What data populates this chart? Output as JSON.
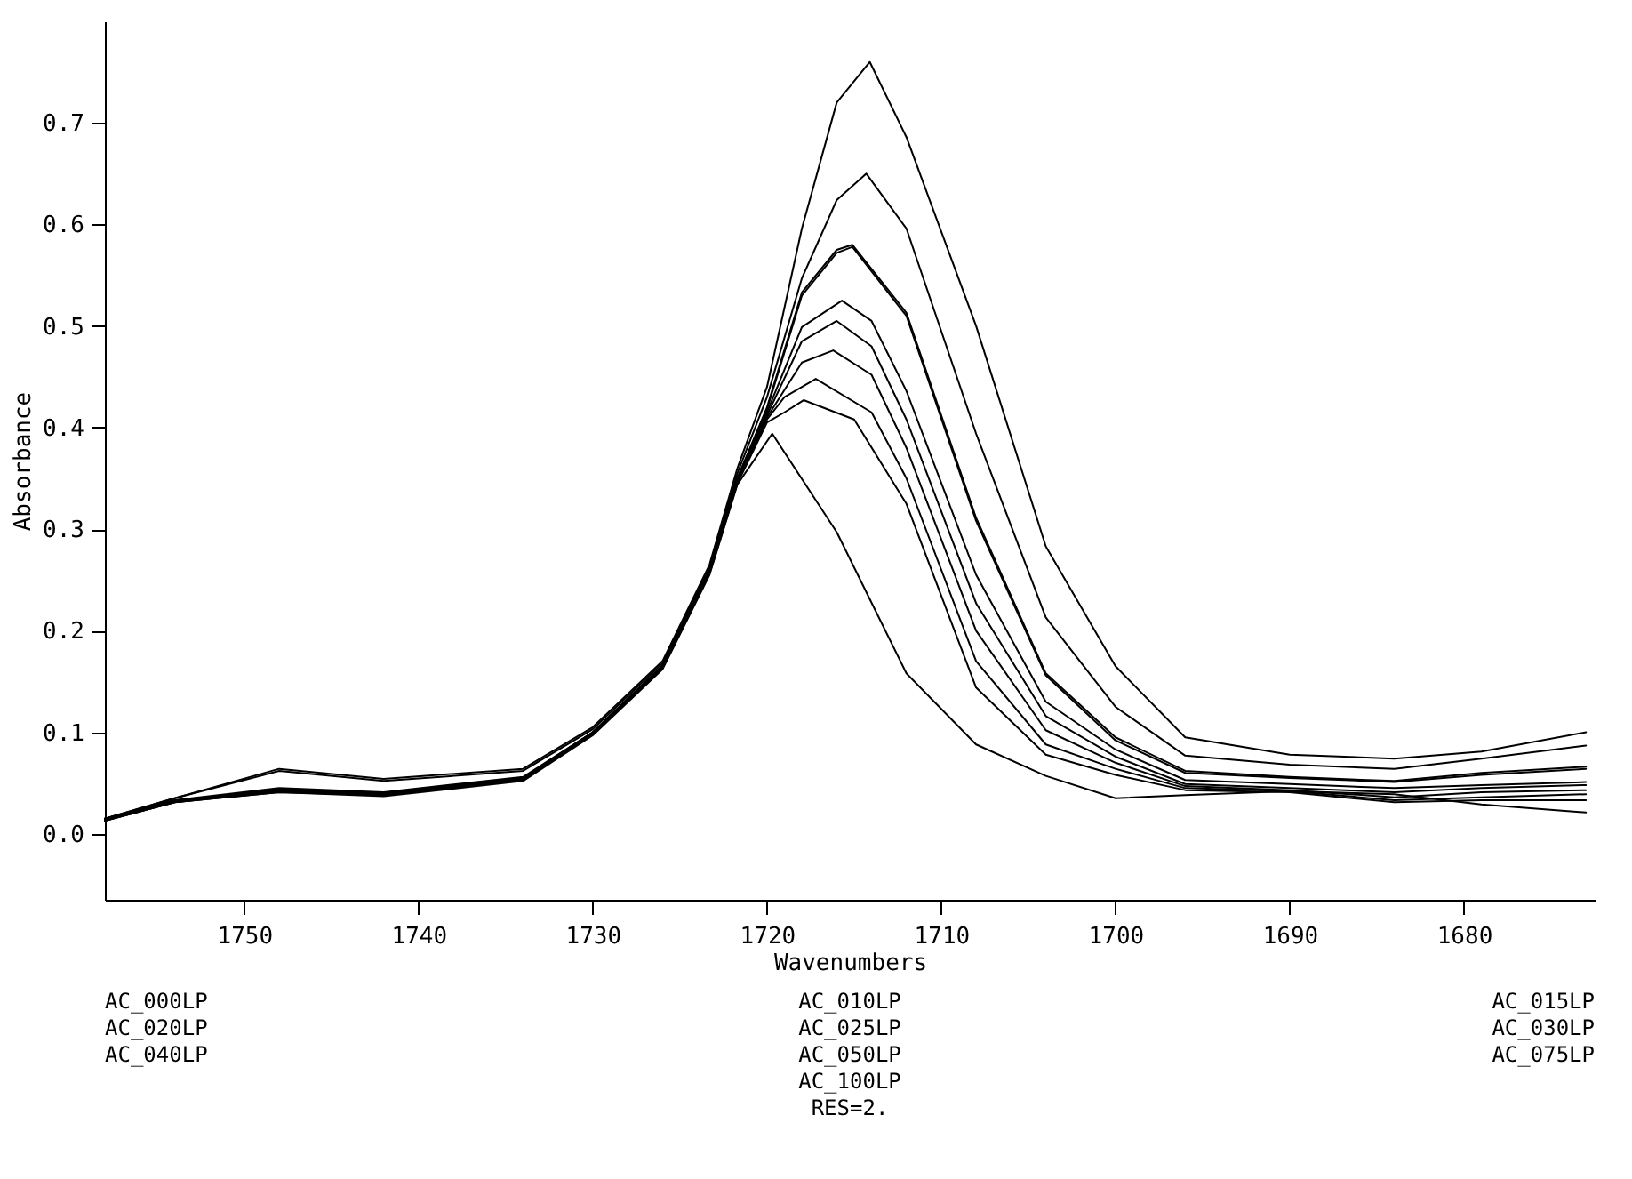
{
  "chart_data": {
    "type": "line",
    "xlabel": "Wavenumbers",
    "ylabel": "Absorbance",
    "xlim": [
      1758,
      1672.5
    ],
    "xticks": [
      1750,
      1740,
      1730,
      1720,
      1710,
      1700,
      1690,
      1680
    ],
    "ylim": [
      -0.065,
      0.8
    ],
    "yticks": [
      {
        "value": 0,
        "label": "0.0"
      },
      0.1,
      0.2,
      0.3,
      0.4,
      0.5,
      0.6,
      0.7
    ],
    "grid": false,
    "legend": false,
    "marker": "none",
    "line_style": "solid",
    "annotations": [
      "AC_000LP\nAC_020LP\nAC_040LP",
      "AC_010LP\nAC_025LP\nAC_050LP\nAC_100LP\nRES=2.",
      "AC_015LP\nAC_030LP\nAC_075LP"
    ],
    "series": [
      {
        "color": "#000000",
        "x": [
          1758,
          1754,
          1748,
          1742,
          1734,
          1730,
          1726,
          1723.3,
          1721.7,
          1720,
          1718,
          1716,
          1714.1,
          1712,
          1708,
          1704,
          1700,
          1696,
          1690,
          1684,
          1679,
          1673
        ],
        "values": [
          0.015,
          0.035,
          0.064,
          0.054,
          0.064,
          0.105,
          0.17,
          0.265,
          0.36,
          0.44,
          0.596,
          0.72,
          0.76,
          0.686,
          0.5,
          0.283,
          0.165,
          0.095,
          0.078,
          0.074,
          0.081,
          0.1
        ]
      },
      {
        "color": "#000000",
        "x": [
          1758,
          1754,
          1748,
          1742,
          1734,
          1730,
          1726,
          1723.3,
          1721.7,
          1720,
          1718,
          1716,
          1714.3,
          1712,
          1708,
          1704,
          1700,
          1696,
          1690,
          1684,
          1679,
          1673
        ],
        "values": [
          0.015,
          0.035,
          0.062,
          0.052,
          0.062,
          0.103,
          0.168,
          0.262,
          0.355,
          0.43,
          0.547,
          0.624,
          0.65,
          0.596,
          0.394,
          0.213,
          0.125,
          0.077,
          0.068,
          0.064,
          0.074,
          0.087
        ]
      },
      {
        "color": "#000000",
        "x": [
          1758,
          1754,
          1748,
          1742,
          1734,
          1730,
          1726,
          1723.3,
          1721.7,
          1720,
          1718,
          1716,
          1715.1,
          1712,
          1708,
          1704,
          1700,
          1696,
          1690,
          1684,
          1679,
          1673
        ],
        "values": [
          0.015,
          0.033,
          0.045,
          0.041,
          0.056,
          0.1,
          0.166,
          0.26,
          0.35,
          0.42,
          0.533,
          0.575,
          0.58,
          0.513,
          0.311,
          0.158,
          0.095,
          0.062,
          0.056,
          0.052,
          0.06,
          0.066
        ]
      },
      {
        "color": "#000000",
        "x": [
          1758,
          1754,
          1748,
          1742,
          1734,
          1730,
          1726,
          1723.3,
          1721.7,
          1720,
          1718,
          1716,
          1715.1,
          1712,
          1708,
          1704,
          1700,
          1696,
          1690,
          1684,
          1679,
          1673
        ],
        "values": [
          0.014,
          0.032,
          0.044,
          0.04,
          0.055,
          0.1,
          0.165,
          0.26,
          0.35,
          0.418,
          0.53,
          0.572,
          0.578,
          0.51,
          0.308,
          0.156,
          0.092,
          0.06,
          0.055,
          0.051,
          0.058,
          0.064
        ]
      },
      {
        "color": "#000000",
        "x": [
          1758,
          1754,
          1748,
          1742,
          1734,
          1730,
          1726,
          1723.3,
          1721.7,
          1720,
          1718,
          1715.7,
          1714,
          1712,
          1708,
          1704,
          1700,
          1696,
          1690,
          1684,
          1679,
          1673
        ],
        "values": [
          0.015,
          0.033,
          0.043,
          0.04,
          0.055,
          0.1,
          0.165,
          0.26,
          0.35,
          0.415,
          0.499,
          0.525,
          0.505,
          0.436,
          0.255,
          0.13,
          0.083,
          0.053,
          0.049,
          0.045,
          0.048,
          0.051
        ]
      },
      {
        "color": "#000000",
        "x": [
          1758,
          1754,
          1748,
          1742,
          1734,
          1730,
          1726,
          1723.3,
          1721.7,
          1720,
          1718,
          1716,
          1714,
          1712,
          1708,
          1704,
          1700,
          1696,
          1690,
          1684,
          1679,
          1673
        ],
        "values": [
          0.014,
          0.032,
          0.043,
          0.039,
          0.054,
          0.099,
          0.164,
          0.258,
          0.348,
          0.412,
          0.485,
          0.505,
          0.48,
          0.408,
          0.227,
          0.116,
          0.076,
          0.049,
          0.045,
          0.041,
          0.045,
          0.048
        ]
      },
      {
        "color": "#000000",
        "x": [
          1758,
          1754,
          1748,
          1742,
          1734,
          1730,
          1726,
          1723.3,
          1721.7,
          1720,
          1718,
          1716.2,
          1714,
          1712,
          1708,
          1704,
          1700,
          1696,
          1690,
          1684,
          1679,
          1673
        ],
        "values": [
          0.014,
          0.032,
          0.042,
          0.039,
          0.054,
          0.099,
          0.164,
          0.258,
          0.347,
          0.41,
          0.464,
          0.476,
          0.452,
          0.38,
          0.2,
          0.102,
          0.07,
          0.047,
          0.043,
          0.036,
          0.041,
          0.043
        ]
      },
      {
        "color": "#000000",
        "x": [
          1758,
          1754,
          1748,
          1742,
          1734,
          1730,
          1726,
          1723.3,
          1721.7,
          1720,
          1719,
          1717.2,
          1714,
          1712,
          1708,
          1704,
          1700,
          1696,
          1690,
          1684,
          1679,
          1673
        ],
        "values": [
          0.013,
          0.031,
          0.042,
          0.038,
          0.053,
          0.098,
          0.163,
          0.257,
          0.346,
          0.408,
          0.43,
          0.448,
          0.415,
          0.35,
          0.17,
          0.088,
          0.064,
          0.045,
          0.042,
          0.033,
          0.036,
          0.039
        ]
      },
      {
        "color": "#000000",
        "x": [
          1758,
          1754,
          1748,
          1742,
          1734,
          1730,
          1726,
          1723.3,
          1721.7,
          1720,
          1719,
          1717.9,
          1715,
          1712,
          1708,
          1704,
          1700,
          1696,
          1690,
          1684,
          1679,
          1673
        ],
        "values": [
          0.013,
          0.031,
          0.041,
          0.038,
          0.053,
          0.098,
          0.163,
          0.256,
          0.345,
          0.405,
          0.415,
          0.427,
          0.408,
          0.325,
          0.144,
          0.078,
          0.058,
          0.043,
          0.041,
          0.031,
          0.033,
          0.033
        ]
      },
      {
        "color": "#000000",
        "x": [
          1758,
          1754,
          1748,
          1742,
          1734,
          1730,
          1726,
          1723.3,
          1721.7,
          1719.7,
          1716,
          1712,
          1708,
          1704,
          1700,
          1696,
          1690,
          1684,
          1679,
          1673
        ],
        "values": [
          0.013,
          0.031,
          0.041,
          0.037,
          0.052,
          0.097,
          0.162,
          0.255,
          0.344,
          0.394,
          0.297,
          0.158,
          0.088,
          0.057,
          0.035,
          0.038,
          0.042,
          0.039,
          0.029,
          0.021
        ]
      }
    ]
  }
}
